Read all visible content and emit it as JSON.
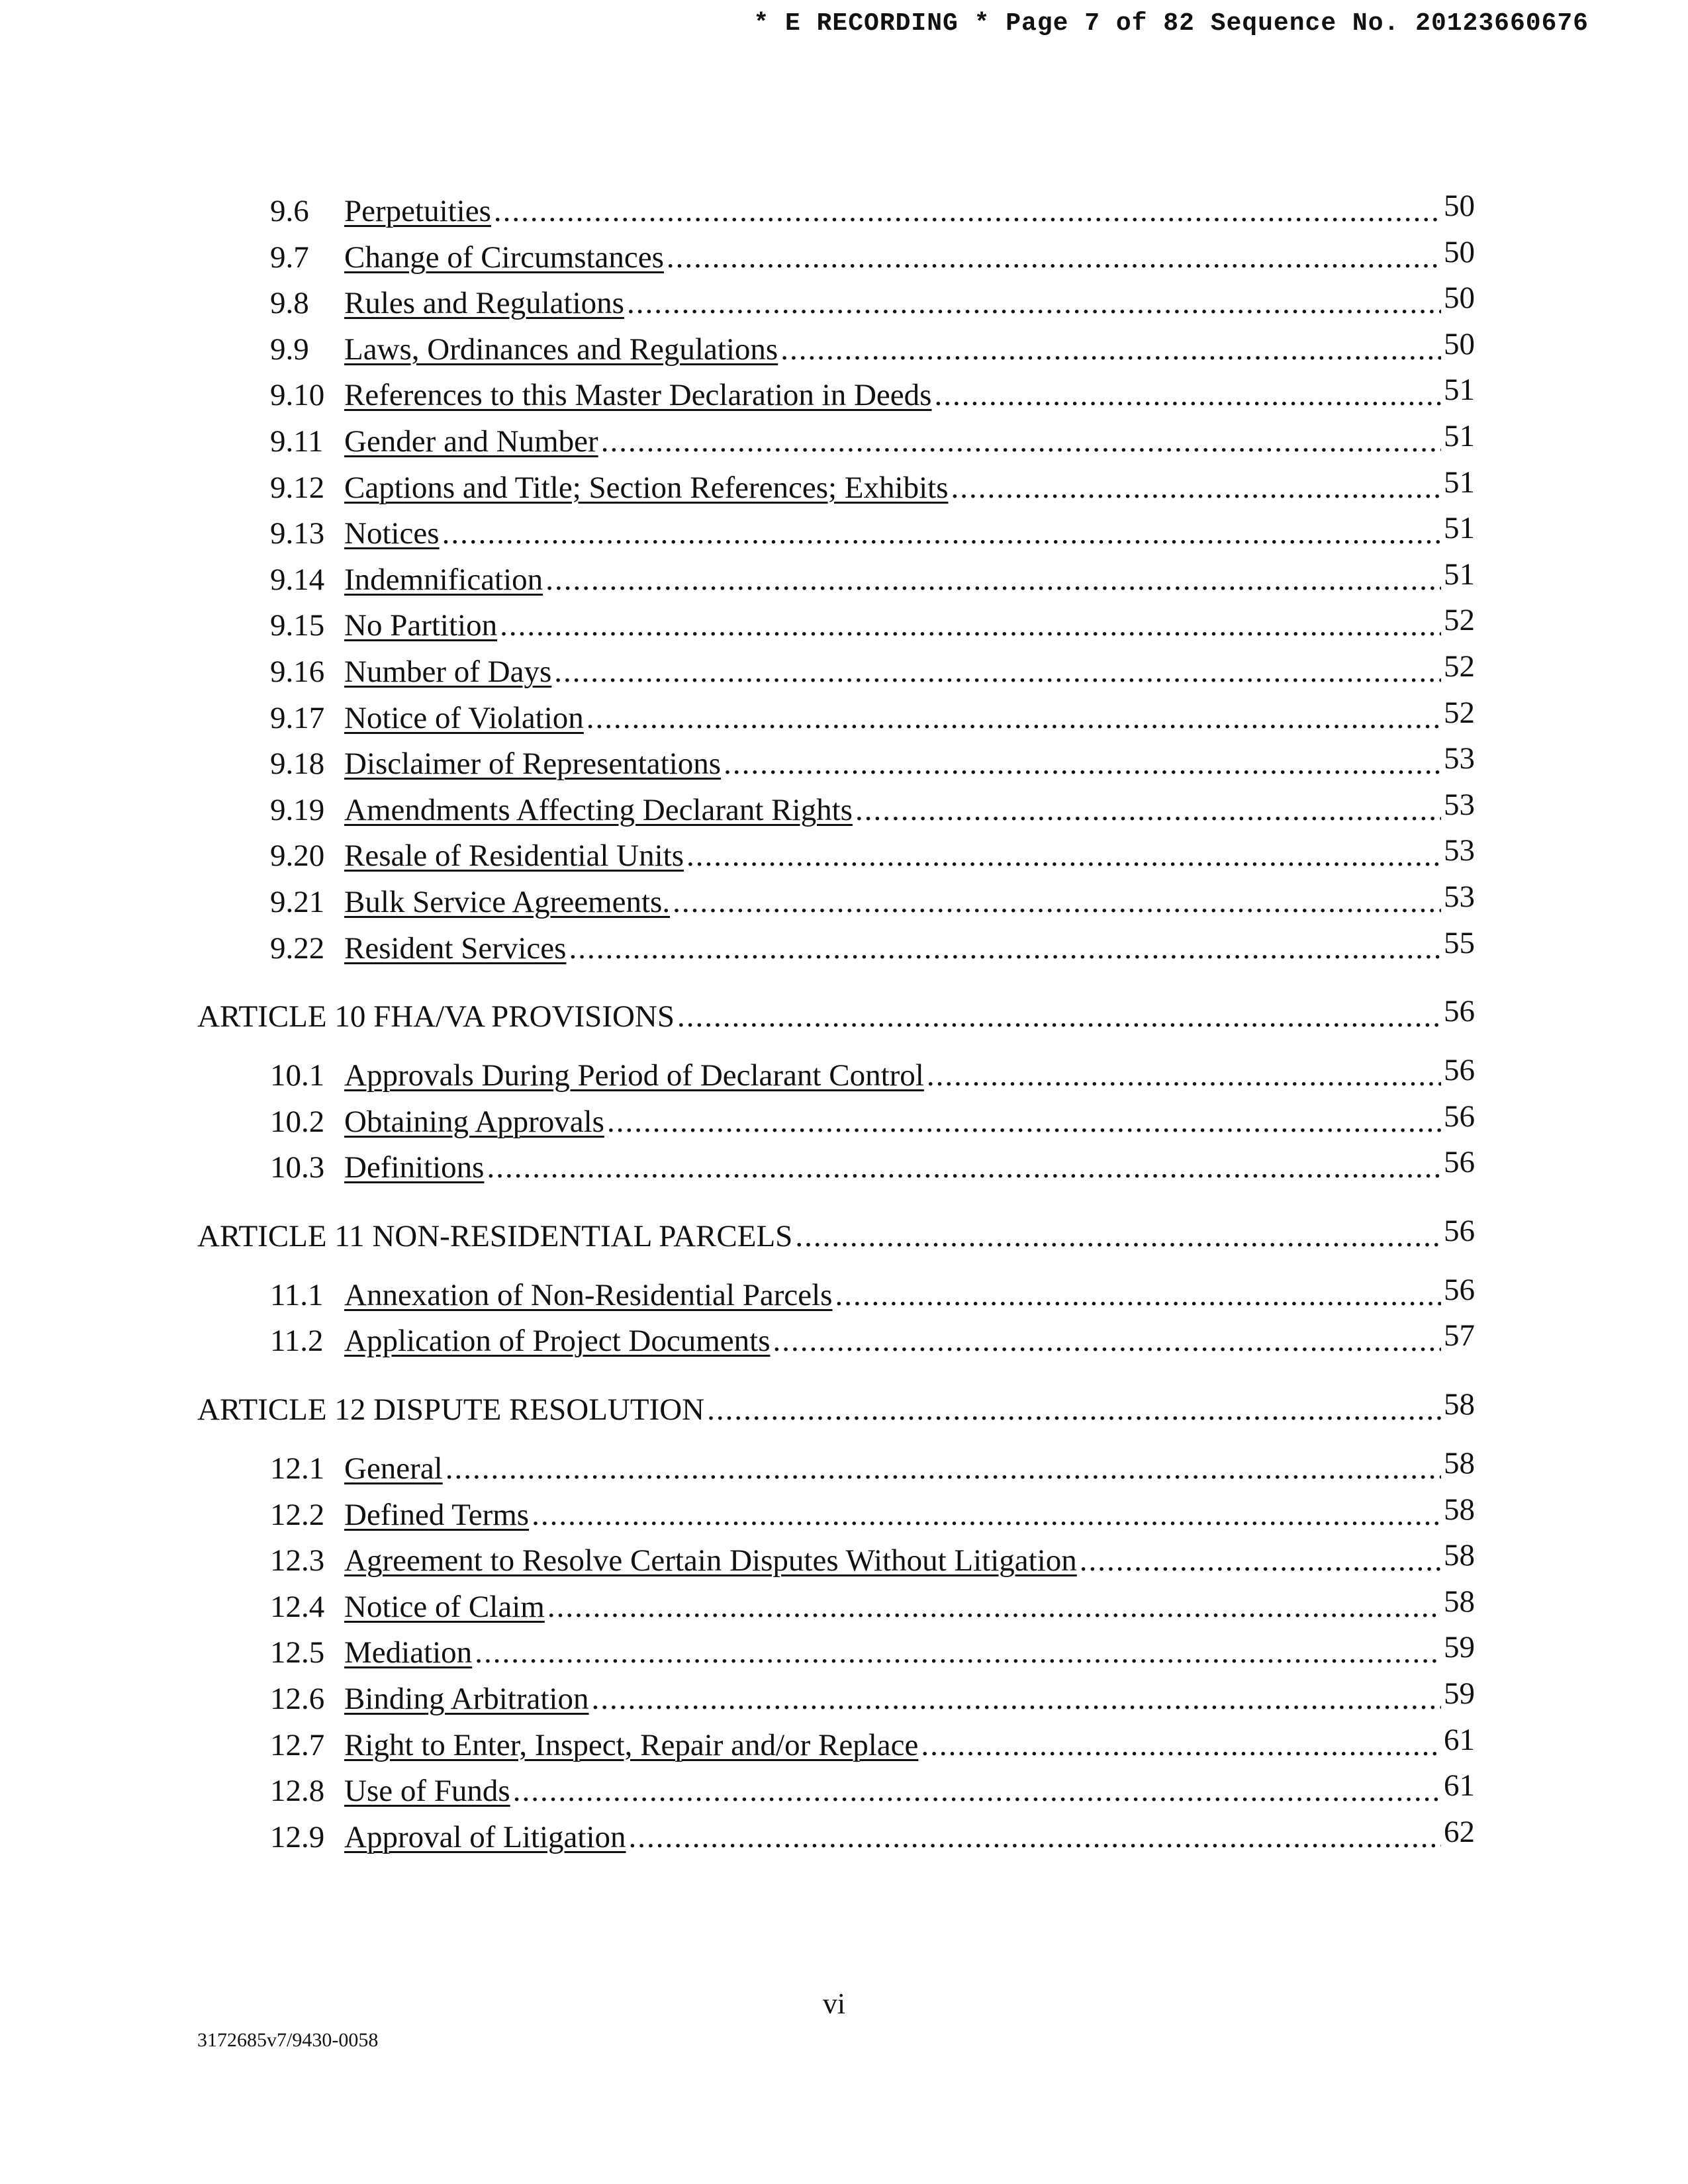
{
  "header": "* E RECORDING * Page 7 of 82 Sequence No. 20123660676",
  "toc": [
    {
      "type": "sub",
      "num": "9.6",
      "title": "Perpetuities",
      "page": "50"
    },
    {
      "type": "sub",
      "num": "9.7",
      "title": "Change of Circumstances",
      "page": "50"
    },
    {
      "type": "sub",
      "num": "9.8",
      "title": "Rules and Regulations",
      "page": "50"
    },
    {
      "type": "sub",
      "num": "9.9",
      "title": "Laws, Ordinances and Regulations",
      "page": "50"
    },
    {
      "type": "sub",
      "num": "9.10",
      "title": "References to this Master Declaration in Deeds",
      "page": "51"
    },
    {
      "type": "sub",
      "num": "9.11",
      "title": "Gender and Number",
      "page": "51"
    },
    {
      "type": "sub",
      "num": "9.12",
      "title": "Captions and Title; Section References; Exhibits",
      "page": "51"
    },
    {
      "type": "sub",
      "num": "9.13",
      "title": "Notices",
      "page": "51"
    },
    {
      "type": "sub",
      "num": "9.14",
      "title": "Indemnification",
      "page": "51"
    },
    {
      "type": "sub",
      "num": "9.15",
      "title": "No Partition",
      "page": "52"
    },
    {
      "type": "sub",
      "num": "9.16",
      "title": "Number of Days",
      "page": "52"
    },
    {
      "type": "sub",
      "num": "9.17",
      "title": "Notice of Violation",
      "page": "52"
    },
    {
      "type": "sub",
      "num": "9.18",
      "title": "Disclaimer of Representations",
      "page": "53"
    },
    {
      "type": "sub",
      "num": "9.19",
      "title": "Amendments Affecting Declarant Rights",
      "page": "53"
    },
    {
      "type": "sub",
      "num": "9.20",
      "title": "Resale of Residential Units",
      "page": "53"
    },
    {
      "type": "sub",
      "num": "9.21",
      "title": "Bulk Service Agreements.",
      "page": "53"
    },
    {
      "type": "sub",
      "num": "9.22",
      "title": "Resident Services",
      "page": "55"
    },
    {
      "type": "art",
      "title": "ARTICLE 10 FHA/VA PROVISIONS",
      "page": "56"
    },
    {
      "type": "sub",
      "num": "10.1",
      "title": "Approvals During Period of Declarant Control",
      "page": "56"
    },
    {
      "type": "sub",
      "num": "10.2",
      "title": "Obtaining Approvals",
      "page": "56"
    },
    {
      "type": "sub",
      "num": "10.3",
      "title": "Definitions",
      "page": "56"
    },
    {
      "type": "art",
      "title": "ARTICLE 11 NON-RESIDENTIAL PARCELS",
      "page": "56"
    },
    {
      "type": "sub",
      "num": "11.1",
      "title": "Annexation of Non-Residential Parcels",
      "page": "56"
    },
    {
      "type": "sub",
      "num": "11.2",
      "title": "Application of Project Documents",
      "page": "57"
    },
    {
      "type": "art",
      "title": "ARTICLE 12 DISPUTE RESOLUTION",
      "page": "58"
    },
    {
      "type": "sub",
      "num": "12.1",
      "title": "General",
      "page": "58"
    },
    {
      "type": "sub",
      "num": "12.2",
      "title": "Defined Terms",
      "page": "58"
    },
    {
      "type": "sub",
      "num": "12.3",
      "title": "Agreement to Resolve Certain Disputes Without Litigation",
      "page": "58"
    },
    {
      "type": "sub",
      "num": "12.4",
      "title": "Notice of Claim",
      "page": "58"
    },
    {
      "type": "sub",
      "num": "12.5",
      "title": "Mediation",
      "page": "59"
    },
    {
      "type": "sub",
      "num": "12.6",
      "title": "Binding Arbitration",
      "page": "59"
    },
    {
      "type": "sub",
      "num": "12.7",
      "title": "Right to Enter, Inspect, Repair and/or Replace",
      "page": "61"
    },
    {
      "type": "sub",
      "num": "12.8",
      "title": "Use of Funds",
      "page": "61"
    },
    {
      "type": "sub",
      "num": "12.9",
      "title": "Approval of Litigation",
      "page": "62"
    }
  ],
  "footer": {
    "page_number": "vi",
    "doc_id": "3172685v7/9430-0058"
  }
}
